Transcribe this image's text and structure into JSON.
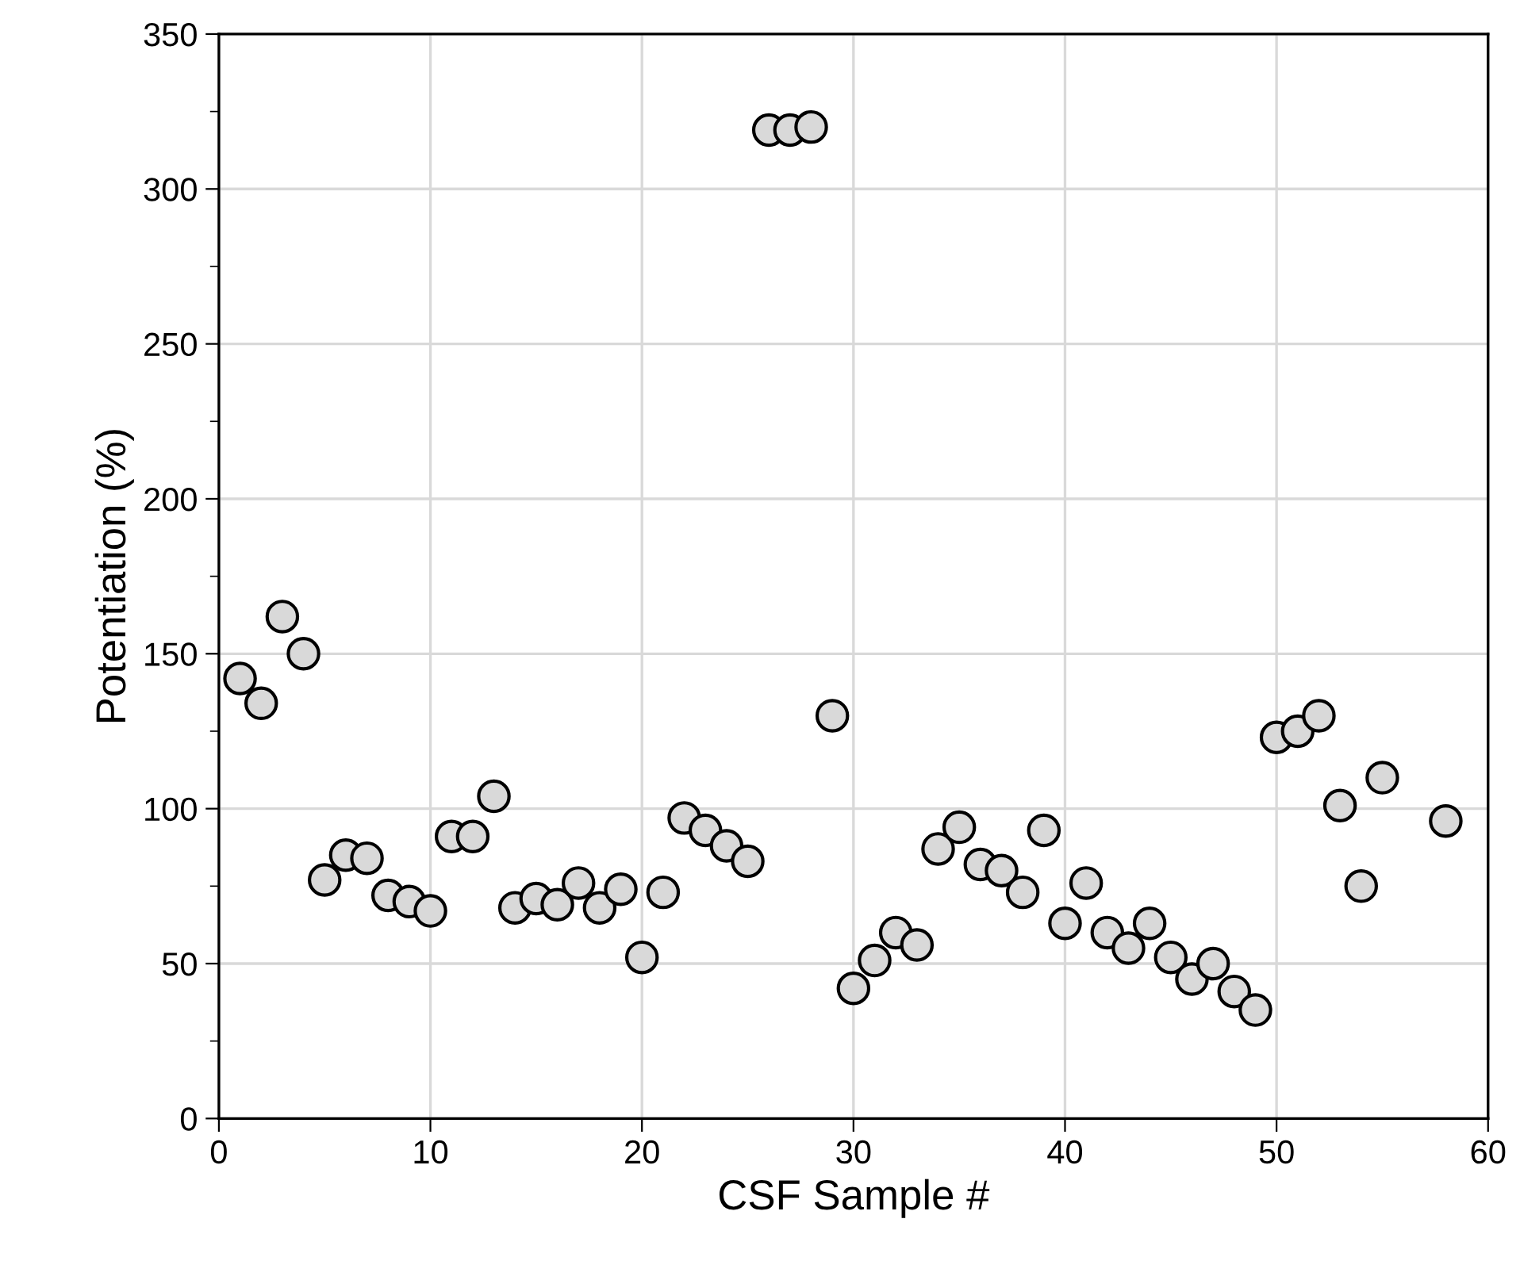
{
  "chart_data": {
    "type": "scatter",
    "xlabel": "CSF Sample #",
    "ylabel": "Potentiation (%)",
    "x": [
      1,
      2,
      3,
      4,
      5,
      6,
      7,
      8,
      9,
      10,
      11,
      12,
      13,
      14,
      15,
      16,
      17,
      18,
      19,
      20,
      21,
      22,
      23,
      24,
      25,
      26,
      27,
      28,
      29,
      30,
      31,
      32,
      33,
      34,
      35,
      36,
      37,
      38,
      39,
      40,
      41,
      42,
      43,
      44,
      45,
      46,
      47,
      48,
      49,
      50,
      51,
      52,
      53,
      54,
      55,
      58
    ],
    "series": [
      {
        "color": "#d9d9d9",
        "values": [
          142,
          134,
          162,
          150,
          77,
          85,
          84,
          72,
          70,
          67,
          91,
          91,
          104,
          68,
          71,
          69,
          76,
          68,
          74,
          52,
          73,
          97,
          93,
          88,
          83,
          319,
          319,
          320,
          130,
          42,
          51,
          60,
          56,
          87,
          94,
          82,
          80,
          73,
          93,
          63,
          76,
          60,
          55,
          63,
          52,
          45,
          50,
          41,
          35,
          123,
          125,
          130,
          101,
          75,
          110,
          96
        ]
      }
    ],
    "xlim": [
      0,
      60
    ],
    "xticks": [
      0,
      10,
      20,
      30,
      40,
      50,
      60
    ],
    "ylim": [
      0,
      350
    ],
    "yticks": [
      0,
      {
        "value": 25,
        "label": null
      },
      50,
      {
        "value": 75,
        "label": null
      },
      100,
      {
        "value": 125,
        "label": null
      },
      150,
      {
        "value": 175,
        "label": null
      },
      200,
      {
        "value": 225,
        "label": null
      },
      250,
      {
        "value": 275,
        "label": null
      },
      300,
      {
        "value": 325,
        "label": null
      },
      350
    ],
    "grid": true,
    "marker": "circle"
  }
}
